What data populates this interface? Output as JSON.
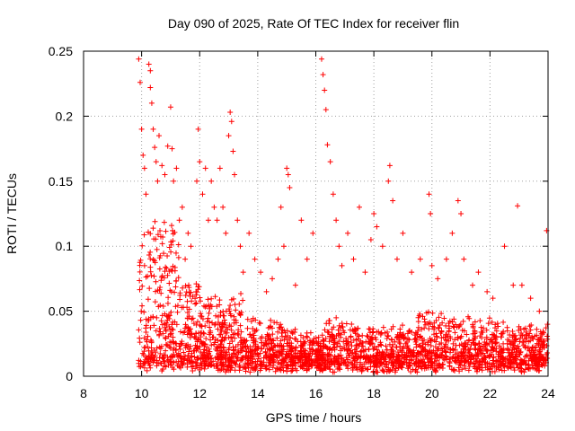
{
  "chart_data": {
    "type": "scatter",
    "title": "Day 090 of 2025, Rate Of TEC Index for receiver flin",
    "xlabel": "GPS time / hours",
    "ylabel": "ROTI / TECUs",
    "xlim": [
      8,
      24
    ],
    "ylim": [
      0,
      0.25
    ],
    "x_ticks": [
      8,
      10,
      12,
      14,
      16,
      18,
      20,
      22,
      24
    ],
    "x_tick_labels": [
      "8",
      "10",
      "12",
      "14",
      "16",
      "18",
      "20",
      "22",
      "24"
    ],
    "y_ticks": [
      0,
      0.05,
      0.1,
      0.15,
      0.2,
      0.25
    ],
    "y_tick_labels": [
      "0",
      "0.05",
      "0.1",
      "0.15",
      "0.2",
      "0.25"
    ],
    "grid": true,
    "marker": "+",
    "color": "#ff0000",
    "series": [
      {
        "name": "ROTI",
        "points": [
          [
            9.9,
            0.244
          ],
          [
            9.95,
            0.226
          ],
          [
            10.0,
            0.19
          ],
          [
            10.05,
            0.17
          ],
          [
            10.1,
            0.16
          ],
          [
            10.15,
            0.14
          ],
          [
            10.25,
            0.24
          ],
          [
            10.3,
            0.235
          ],
          [
            10.3,
            0.222
          ],
          [
            10.35,
            0.21
          ],
          [
            10.4,
            0.19
          ],
          [
            10.45,
            0.176
          ],
          [
            10.5,
            0.165
          ],
          [
            10.55,
            0.15
          ],
          [
            10.6,
            0.185
          ],
          [
            10.7,
            0.162
          ],
          [
            10.8,
            0.155
          ],
          [
            10.9,
            0.177
          ],
          [
            11.0,
            0.207
          ],
          [
            11.05,
            0.175
          ],
          [
            11.1,
            0.15
          ],
          [
            11.2,
            0.16
          ],
          [
            11.3,
            0.12
          ],
          [
            11.4,
            0.13
          ],
          [
            11.5,
            0.09
          ],
          [
            11.6,
            0.11
          ],
          [
            11.7,
            0.1
          ],
          [
            11.9,
            0.15
          ],
          [
            11.95,
            0.19
          ],
          [
            12.0,
            0.165
          ],
          [
            12.1,
            0.14
          ],
          [
            12.2,
            0.16
          ],
          [
            12.3,
            0.12
          ],
          [
            12.4,
            0.15
          ],
          [
            12.5,
            0.13
          ],
          [
            12.6,
            0.12
          ],
          [
            12.7,
            0.16
          ],
          [
            12.8,
            0.13
          ],
          [
            12.9,
            0.11
          ],
          [
            13.0,
            0.185
          ],
          [
            13.05,
            0.203
          ],
          [
            13.1,
            0.196
          ],
          [
            13.15,
            0.173
          ],
          [
            13.2,
            0.155
          ],
          [
            13.3,
            0.12
          ],
          [
            13.4,
            0.1
          ],
          [
            13.5,
            0.08
          ],
          [
            13.7,
            0.11
          ],
          [
            13.9,
            0.09
          ],
          [
            14.1,
            0.08
          ],
          [
            14.3,
            0.065
          ],
          [
            14.5,
            0.075
          ],
          [
            14.7,
            0.09
          ],
          [
            14.8,
            0.13
          ],
          [
            14.9,
            0.1
          ],
          [
            15.0,
            0.16
          ],
          [
            15.05,
            0.155
          ],
          [
            15.1,
            0.145
          ],
          [
            15.3,
            0.07
          ],
          [
            15.5,
            0.12
          ],
          [
            15.7,
            0.09
          ],
          [
            15.9,
            0.11
          ],
          [
            16.2,
            0.244
          ],
          [
            16.25,
            0.232
          ],
          [
            16.3,
            0.22
          ],
          [
            16.35,
            0.205
          ],
          [
            16.4,
            0.178
          ],
          [
            16.5,
            0.165
          ],
          [
            16.6,
            0.14
          ],
          [
            16.7,
            0.12
          ],
          [
            16.8,
            0.1
          ],
          [
            16.9,
            0.085
          ],
          [
            17.1,
            0.11
          ],
          [
            17.3,
            0.09
          ],
          [
            17.5,
            0.13
          ],
          [
            17.7,
            0.08
          ],
          [
            17.9,
            0.105
          ],
          [
            18.0,
            0.125
          ],
          [
            18.1,
            0.115
          ],
          [
            18.3,
            0.1
          ],
          [
            18.5,
            0.15
          ],
          [
            18.55,
            0.162
          ],
          [
            18.65,
            0.135
          ],
          [
            18.8,
            0.09
          ],
          [
            19.0,
            0.11
          ],
          [
            19.3,
            0.08
          ],
          [
            19.6,
            0.09
          ],
          [
            19.9,
            0.14
          ],
          [
            19.95,
            0.125
          ],
          [
            20.0,
            0.085
          ],
          [
            20.2,
            0.075
          ],
          [
            20.5,
            0.09
          ],
          [
            20.7,
            0.11
          ],
          [
            20.9,
            0.135
          ],
          [
            21.0,
            0.125
          ],
          [
            21.1,
            0.09
          ],
          [
            21.4,
            0.07
          ],
          [
            21.6,
            0.08
          ],
          [
            21.9,
            0.065
          ],
          [
            22.1,
            0.06
          ],
          [
            22.5,
            0.1
          ],
          [
            22.8,
            0.07
          ],
          [
            22.95,
            0.131
          ],
          [
            23.1,
            0.07
          ],
          [
            23.4,
            0.06
          ],
          [
            23.7,
            0.05
          ],
          [
            23.95,
            0.112
          ],
          [
            23.98,
            0.04
          ]
        ]
      }
    ]
  }
}
